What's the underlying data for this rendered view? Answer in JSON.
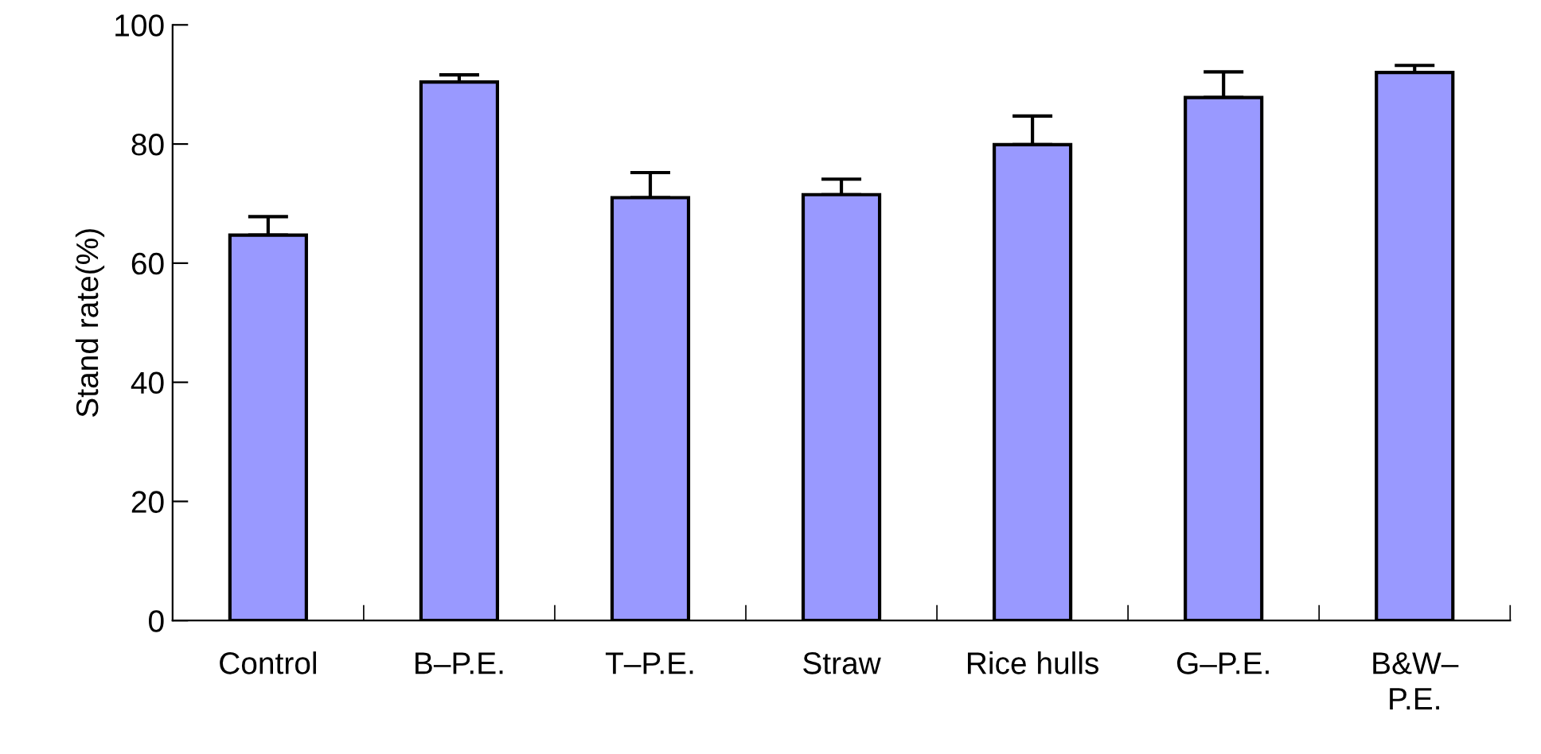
{
  "chart_data": {
    "type": "bar",
    "ylabel": "Stand rate(%)",
    "categories": [
      "Control",
      "B–P.E.",
      "T–P.E.",
      "Straw",
      "Rice hulls",
      "G–P.E.",
      "B&W–\nP.E."
    ],
    "values": [
      64.7,
      90.4,
      71.0,
      71.5,
      79.9,
      87.8,
      92.0
    ],
    "errors": [
      [
        64.7,
        67.8
      ],
      [
        90.4,
        91.6
      ],
      [
        71.0,
        75.2
      ],
      [
        71.5,
        74.1
      ],
      [
        79.9,
        84.7
      ],
      [
        87.8,
        92.1
      ],
      [
        92.0,
        93.2
      ]
    ],
    "color": "#9999ff",
    "ylim": [
      0,
      100
    ],
    "yticks": [
      0,
      20,
      40,
      60,
      80,
      100
    ],
    "grid": false,
    "legend": false
  }
}
